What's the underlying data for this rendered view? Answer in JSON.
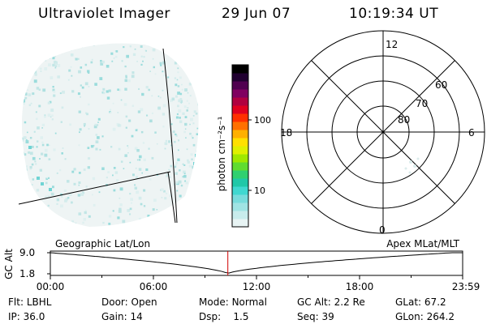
{
  "header": {
    "title": "Ultraviolet Imager",
    "date": "29 Jun 07",
    "time": "10:19:34 UT"
  },
  "colorbar": {
    "unit_label": "photon cm⁻²s⁻¹",
    "ticks": [
      "100",
      "10"
    ],
    "colors": [
      "#e8f4f4",
      "#c8ecec",
      "#a0e4e4",
      "#78dcdc",
      "#40d8d0",
      "#20c8a8",
      "#30d070",
      "#60dc30",
      "#a0e800",
      "#e0f000",
      "#ffe000",
      "#ffb000",
      "#ff7000",
      "#ff3000",
      "#e00020",
      "#b00040",
      "#800060",
      "#500050",
      "#200030",
      "#000000"
    ]
  },
  "polar": {
    "mlt_labels": [
      "12",
      "18",
      "6",
      "0"
    ],
    "lat_labels": [
      "60",
      "70",
      "80"
    ]
  },
  "timeline": {
    "axis_label": "GC Alt",
    "y_ticks": [
      "9.0",
      "1.8"
    ],
    "left_label": "Geographic Lat/Lon",
    "right_label": "Apex MLat/MLT",
    "x_ticks": [
      "00:00",
      "06:00",
      "12:00",
      "18:00",
      "23:59"
    ],
    "current_time_hours": 10.33
  },
  "footer": [
    [
      {
        "label": "Flt:",
        "value": "LBHL"
      },
      {
        "label": "Door:",
        "value": "Open"
      },
      {
        "label": "Mode:",
        "value": "Normal"
      },
      {
        "label": "GC Alt:",
        "value": "2.2 Re"
      },
      {
        "label": "GLat:",
        "value": "67.2"
      }
    ],
    [
      {
        "label": "IP:",
        "value": "36.0"
      },
      {
        "label": "Gain:",
        "value": "14"
      },
      {
        "label": "Dsp:",
        "value": "1.5"
      },
      {
        "label": "Seq:",
        "value": "39"
      },
      {
        "label": "GLon:",
        "value": "264.2"
      }
    ]
  ]
}
